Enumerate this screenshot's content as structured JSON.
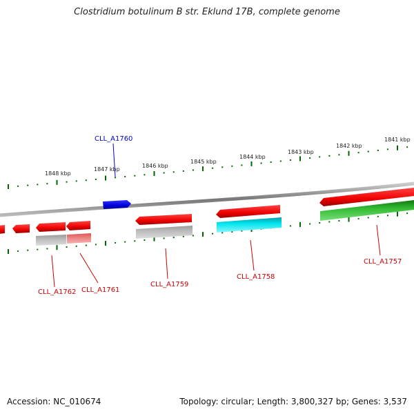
{
  "title": "Clostridium botulinum B str. Eklund 17B, complete genome",
  "footer": {
    "accession": "Accession: NC_010674",
    "summary": "Topology: circular; Length: 3,800,327 bp; Genes: 3,537"
  },
  "ruler": {
    "ticks": [
      {
        "label": "1848 kbp"
      },
      {
        "label": "1847 kbp"
      },
      {
        "label": "1846 kbp"
      },
      {
        "label": "1845 kbp"
      },
      {
        "label": "1844 kbp"
      },
      {
        "label": "1843 kbp"
      },
      {
        "label": "1842 kbp"
      },
      {
        "label": "1841 kbp"
      }
    ]
  },
  "genes": [
    {
      "label": "CLL_A1760",
      "color": "#0000cc",
      "strand": "forward"
    },
    {
      "label": "CLL_A1762",
      "color": "#cc0000",
      "strand": "reverse"
    },
    {
      "label": "CLL_A1761",
      "color": "#cc0000",
      "strand": "reverse"
    },
    {
      "label": "CLL_A1759",
      "color": "#cc0000",
      "strand": "reverse"
    },
    {
      "label": "CLL_A1758",
      "color": "#cc0000",
      "strand": "reverse"
    },
    {
      "label": "CLL_A1757",
      "color": "#cc0000",
      "strand": "reverse"
    }
  ],
  "colors": {
    "cds_red": "#ee0000",
    "cds_blue": "#0000dd",
    "cds_gray": "#aaaaaa",
    "cds_pink": "#e87878",
    "cds_cyan": "#00e5ee",
    "cds_green": "#33bb33",
    "backbone": "#888888",
    "ticks": "#006600"
  }
}
